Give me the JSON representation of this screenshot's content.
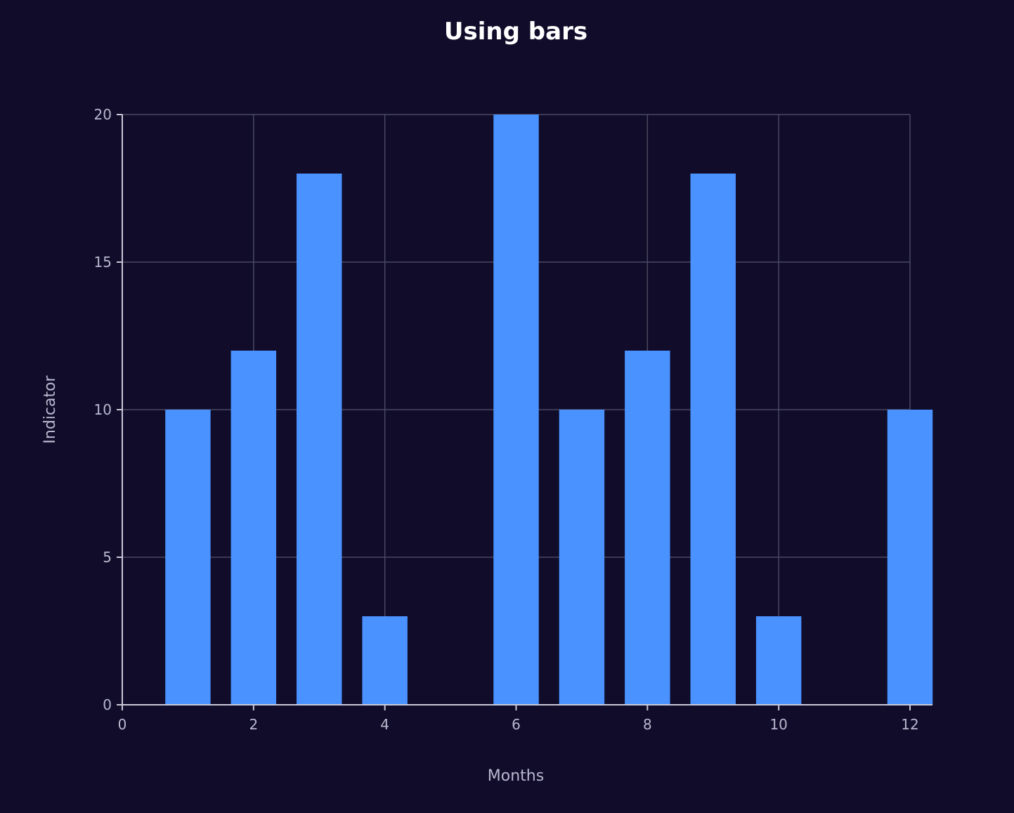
{
  "chart_data": {
    "type": "bar",
    "title": "Using bars",
    "xlabel": "Months",
    "ylabel": "Indicator",
    "x": [
      1,
      2,
      3,
      4,
      6,
      7,
      8,
      9,
      10,
      12
    ],
    "values": [
      10,
      12,
      18,
      3,
      20,
      10,
      12,
      18,
      3,
      10
    ],
    "xlim": [
      0,
      12
    ],
    "ylim": [
      0,
      20
    ],
    "xticks": [
      "0",
      "2",
      "4",
      "6",
      "8",
      "10",
      "12"
    ],
    "yticks": [
      "0",
      "5",
      "10",
      "15",
      "20"
    ],
    "grid": true,
    "colors": {
      "bar": "#4992ff",
      "background": "#100c2a"
    }
  }
}
